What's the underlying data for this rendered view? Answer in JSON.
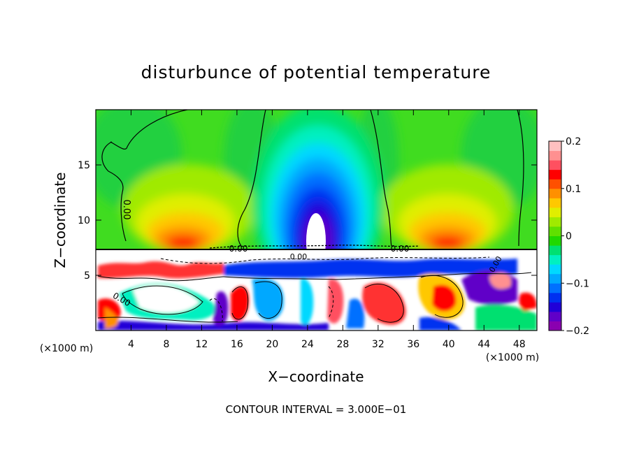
{
  "chart_data": {
    "type": "heatmap",
    "title": "disturbunce of potential temperature",
    "xlabel": "X−coordinate",
    "ylabel": "Z−coordinate",
    "x_unit_label": "(×1000 m)",
    "x_unit_label_right": "(×1000 m)",
    "xlim": [
      0,
      50
    ],
    "ylim": [
      0,
      20
    ],
    "x_ticks": [
      {
        "value": 4,
        "label": "4"
      },
      {
        "value": 8,
        "label": "8"
      },
      {
        "value": 12,
        "label": "12"
      },
      {
        "value": 16,
        "label": "16"
      },
      {
        "value": 20,
        "label": "20"
      },
      {
        "value": 24,
        "label": "24"
      },
      {
        "value": 28,
        "label": "28"
      },
      {
        "value": 32,
        "label": "32"
      },
      {
        "value": 36,
        "label": "36"
      },
      {
        "value": 40,
        "label": "40"
      },
      {
        "value": 44,
        "label": "44"
      },
      {
        "value": 48,
        "label": "48"
      }
    ],
    "y_ticks": [
      {
        "value": 5,
        "label": "5"
      },
      {
        "value": 10,
        "label": "10"
      },
      {
        "value": 15,
        "label": "15"
      }
    ],
    "colorbar": {
      "range": [
        -0.2,
        0.2
      ],
      "ticks": [
        {
          "value": 0.2,
          "label": "0.2"
        },
        {
          "value": 0.1,
          "label": "0.1"
        },
        {
          "value": 0,
          "label": "0"
        },
        {
          "value": -0.1,
          "label": "−0.1"
        },
        {
          "value": -0.2,
          "label": "−0.2"
        }
      ],
      "colors": [
        "#8a00b0",
        "#6000c8",
        "#2000d8",
        "#0030f0",
        "#0070ff",
        "#00a8ff",
        "#00d8ff",
        "#00f0c0",
        "#00e070",
        "#20d800",
        "#60e000",
        "#a0ea00",
        "#e0ee00",
        "#ffc800",
        "#ff9000",
        "#ff5000",
        "#ff0000",
        "#ff5060",
        "#ff9090",
        "#ffc0c0"
      ]
    },
    "contour_labels": [
      "0.00",
      "0.00",
      "0.00",
      "0.00",
      "0.00",
      "0.00"
    ],
    "footer": "CONTOUR INTERVAL = 3.000E−01"
  }
}
